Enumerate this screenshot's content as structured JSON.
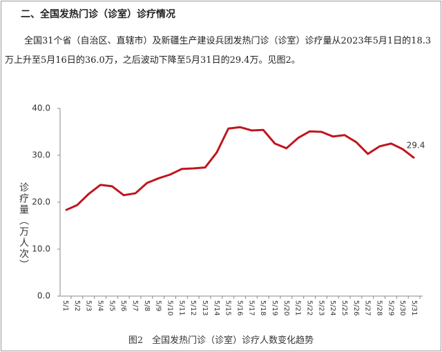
{
  "heading": "二、全国发热门诊（诊室）诊疗情况",
  "paragraph": "全国31个省（自治区、直辖市）及新疆生产建设兵团发热门诊（诊室）诊疗量从2023年5月1日的18.3万上升至5月16日的36.0万，之后波动下降至5月31日的29.4万。见图2。",
  "caption": "图2　全国发热门诊（诊室）诊疗人数变化趋势",
  "chart_data": {
    "type": "line",
    "y_label": "诊疗量（万人次）",
    "categories": [
      "5/1",
      "5/2",
      "5/3",
      "5/4",
      "5/5",
      "5/6",
      "5/7",
      "5/8",
      "5/9",
      "5/10",
      "5/11",
      "5/12",
      "5/13",
      "5/14",
      "5/15",
      "5/16",
      "5/17",
      "5/18",
      "5/19",
      "5/20",
      "5/21",
      "5/22",
      "5/23",
      "5/24",
      "5/25",
      "5/26",
      "5/27",
      "5/28",
      "5/29",
      "5/30",
      "5/31"
    ],
    "values": [
      18.3,
      19.4,
      21.8,
      23.7,
      23.4,
      21.5,
      21.9,
      24.1,
      25.1,
      25.9,
      27.1,
      27.2,
      27.4,
      30.6,
      35.7,
      36.0,
      35.3,
      35.4,
      32.5,
      31.5,
      33.7,
      35.1,
      35.0,
      34.0,
      34.3,
      32.8,
      30.3,
      31.9,
      32.5,
      31.3,
      29.4
    ],
    "color": "#c0151d",
    "ylim": [
      0,
      40
    ],
    "yticks": [
      {
        "value": 0,
        "label": "0.0"
      },
      {
        "value": 10,
        "label": "10.0"
      },
      {
        "value": 20,
        "label": "20.0"
      },
      {
        "value": 30,
        "label": "30.0"
      },
      {
        "value": 40,
        "label": "40.0"
      }
    ]
  }
}
